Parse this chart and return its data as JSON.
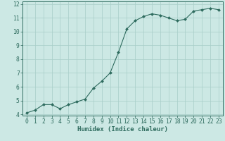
{
  "x": [
    0,
    1,
    2,
    3,
    4,
    5,
    6,
    7,
    8,
    9,
    10,
    11,
    12,
    13,
    14,
    15,
    16,
    17,
    18,
    19,
    20,
    21,
    22,
    23
  ],
  "y": [
    4.1,
    4.3,
    4.7,
    4.7,
    4.4,
    4.7,
    4.9,
    5.1,
    5.9,
    6.4,
    7.0,
    8.5,
    10.2,
    10.8,
    11.1,
    11.3,
    11.2,
    11.0,
    10.8,
    10.9,
    11.5,
    11.6,
    11.7,
    11.6
  ],
  "line_color": "#2e6b5e",
  "marker": "D",
  "marker_size": 2.0,
  "bg_color": "#cce8e4",
  "grid_color": "#a8cec8",
  "axis_color": "#2e6b5e",
  "tick_color": "#2e6b5e",
  "label_color": "#2e6b5e",
  "xlabel": "Humidex (Indice chaleur)",
  "xlim": [
    -0.5,
    23.5
  ],
  "ylim": [
    3.9,
    12.2
  ],
  "yticks": [
    4,
    5,
    6,
    7,
    8,
    9,
    10,
    11,
    12
  ],
  "xticks": [
    0,
    1,
    2,
    3,
    4,
    5,
    6,
    7,
    8,
    9,
    10,
    11,
    12,
    13,
    14,
    15,
    16,
    17,
    18,
    19,
    20,
    21,
    22,
    23
  ],
  "font_size": 5.8,
  "label_font_size": 6.5
}
